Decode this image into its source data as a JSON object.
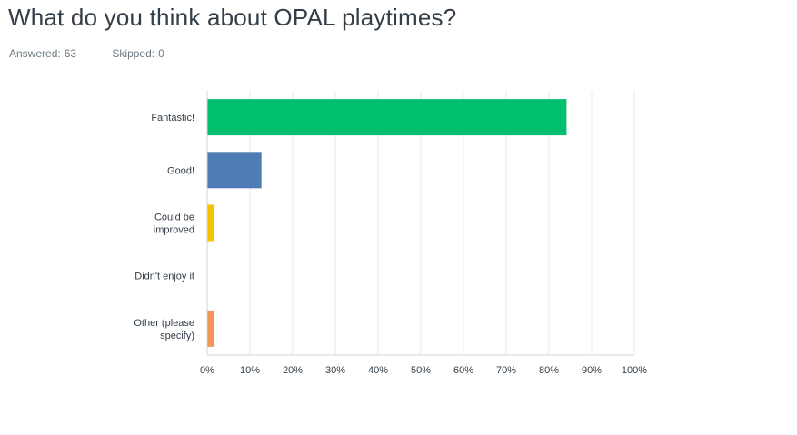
{
  "title": "What do you think about OPAL playtimes?",
  "stats": {
    "answered_label": "Answered:",
    "answered_value": "63",
    "skipped_label": "Skipped:",
    "skipped_value": "0"
  },
  "chart_data": {
    "type": "bar",
    "orientation": "horizontal",
    "categories": [
      [
        "Fantastic!"
      ],
      [
        "Good!"
      ],
      [
        "Could be",
        "improved"
      ],
      [
        "Didn't enjoy it"
      ],
      [
        "Other (please",
        "specify)"
      ]
    ],
    "values": [
      84.13,
      12.7,
      1.59,
      0.0,
      1.59
    ],
    "colors": [
      "#00bf6f",
      "#507cb6",
      "#f4c400",
      "#6bc8cd",
      "#f4935a"
    ],
    "xlim": [
      0,
      100
    ],
    "ticks": [
      "0%",
      "10%",
      "20%",
      "30%",
      "40%",
      "50%",
      "60%",
      "70%",
      "80%",
      "90%",
      "100%"
    ],
    "grid": true
  }
}
